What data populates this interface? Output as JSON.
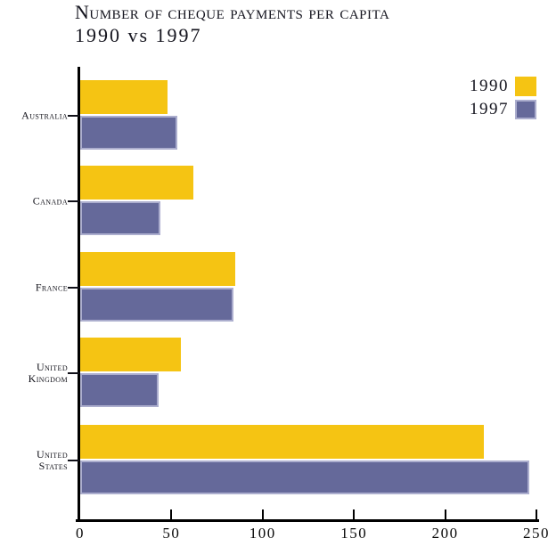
{
  "title": {
    "line1": "Number of cheque payments per capita",
    "line2": "1990 vs 1997"
  },
  "legend": [
    {
      "label": "1990",
      "color": "#F5C413"
    },
    {
      "label": "1997",
      "color": "#65699A"
    }
  ],
  "colors": {
    "bar_1990": "#F5C413",
    "bar_1997": "#65699A",
    "bar_border_1997": "#ACAECE",
    "axis": "#000000",
    "text": "#14141E"
  },
  "chart_data": {
    "type": "bar",
    "orientation": "horizontal",
    "title": "Number of cheque payments per capita 1990 vs 1997",
    "categories": [
      "Australia",
      "Canada",
      "France",
      "United\nKingdom",
      "United\nStates"
    ],
    "series": [
      {
        "name": "1990",
        "color": "#F5C413",
        "values": [
          48,
          62,
          85,
          55,
          221
        ]
      },
      {
        "name": "1997",
        "color": "#65699A",
        "values": [
          53,
          44,
          84,
          43,
          246
        ]
      }
    ],
    "xlim": [
      0,
      250
    ],
    "xticks": [
      0,
      50,
      100,
      150,
      200,
      250
    ],
    "xlabel": "",
    "ylabel": "",
    "grid": false,
    "legend_position": "top-right"
  }
}
